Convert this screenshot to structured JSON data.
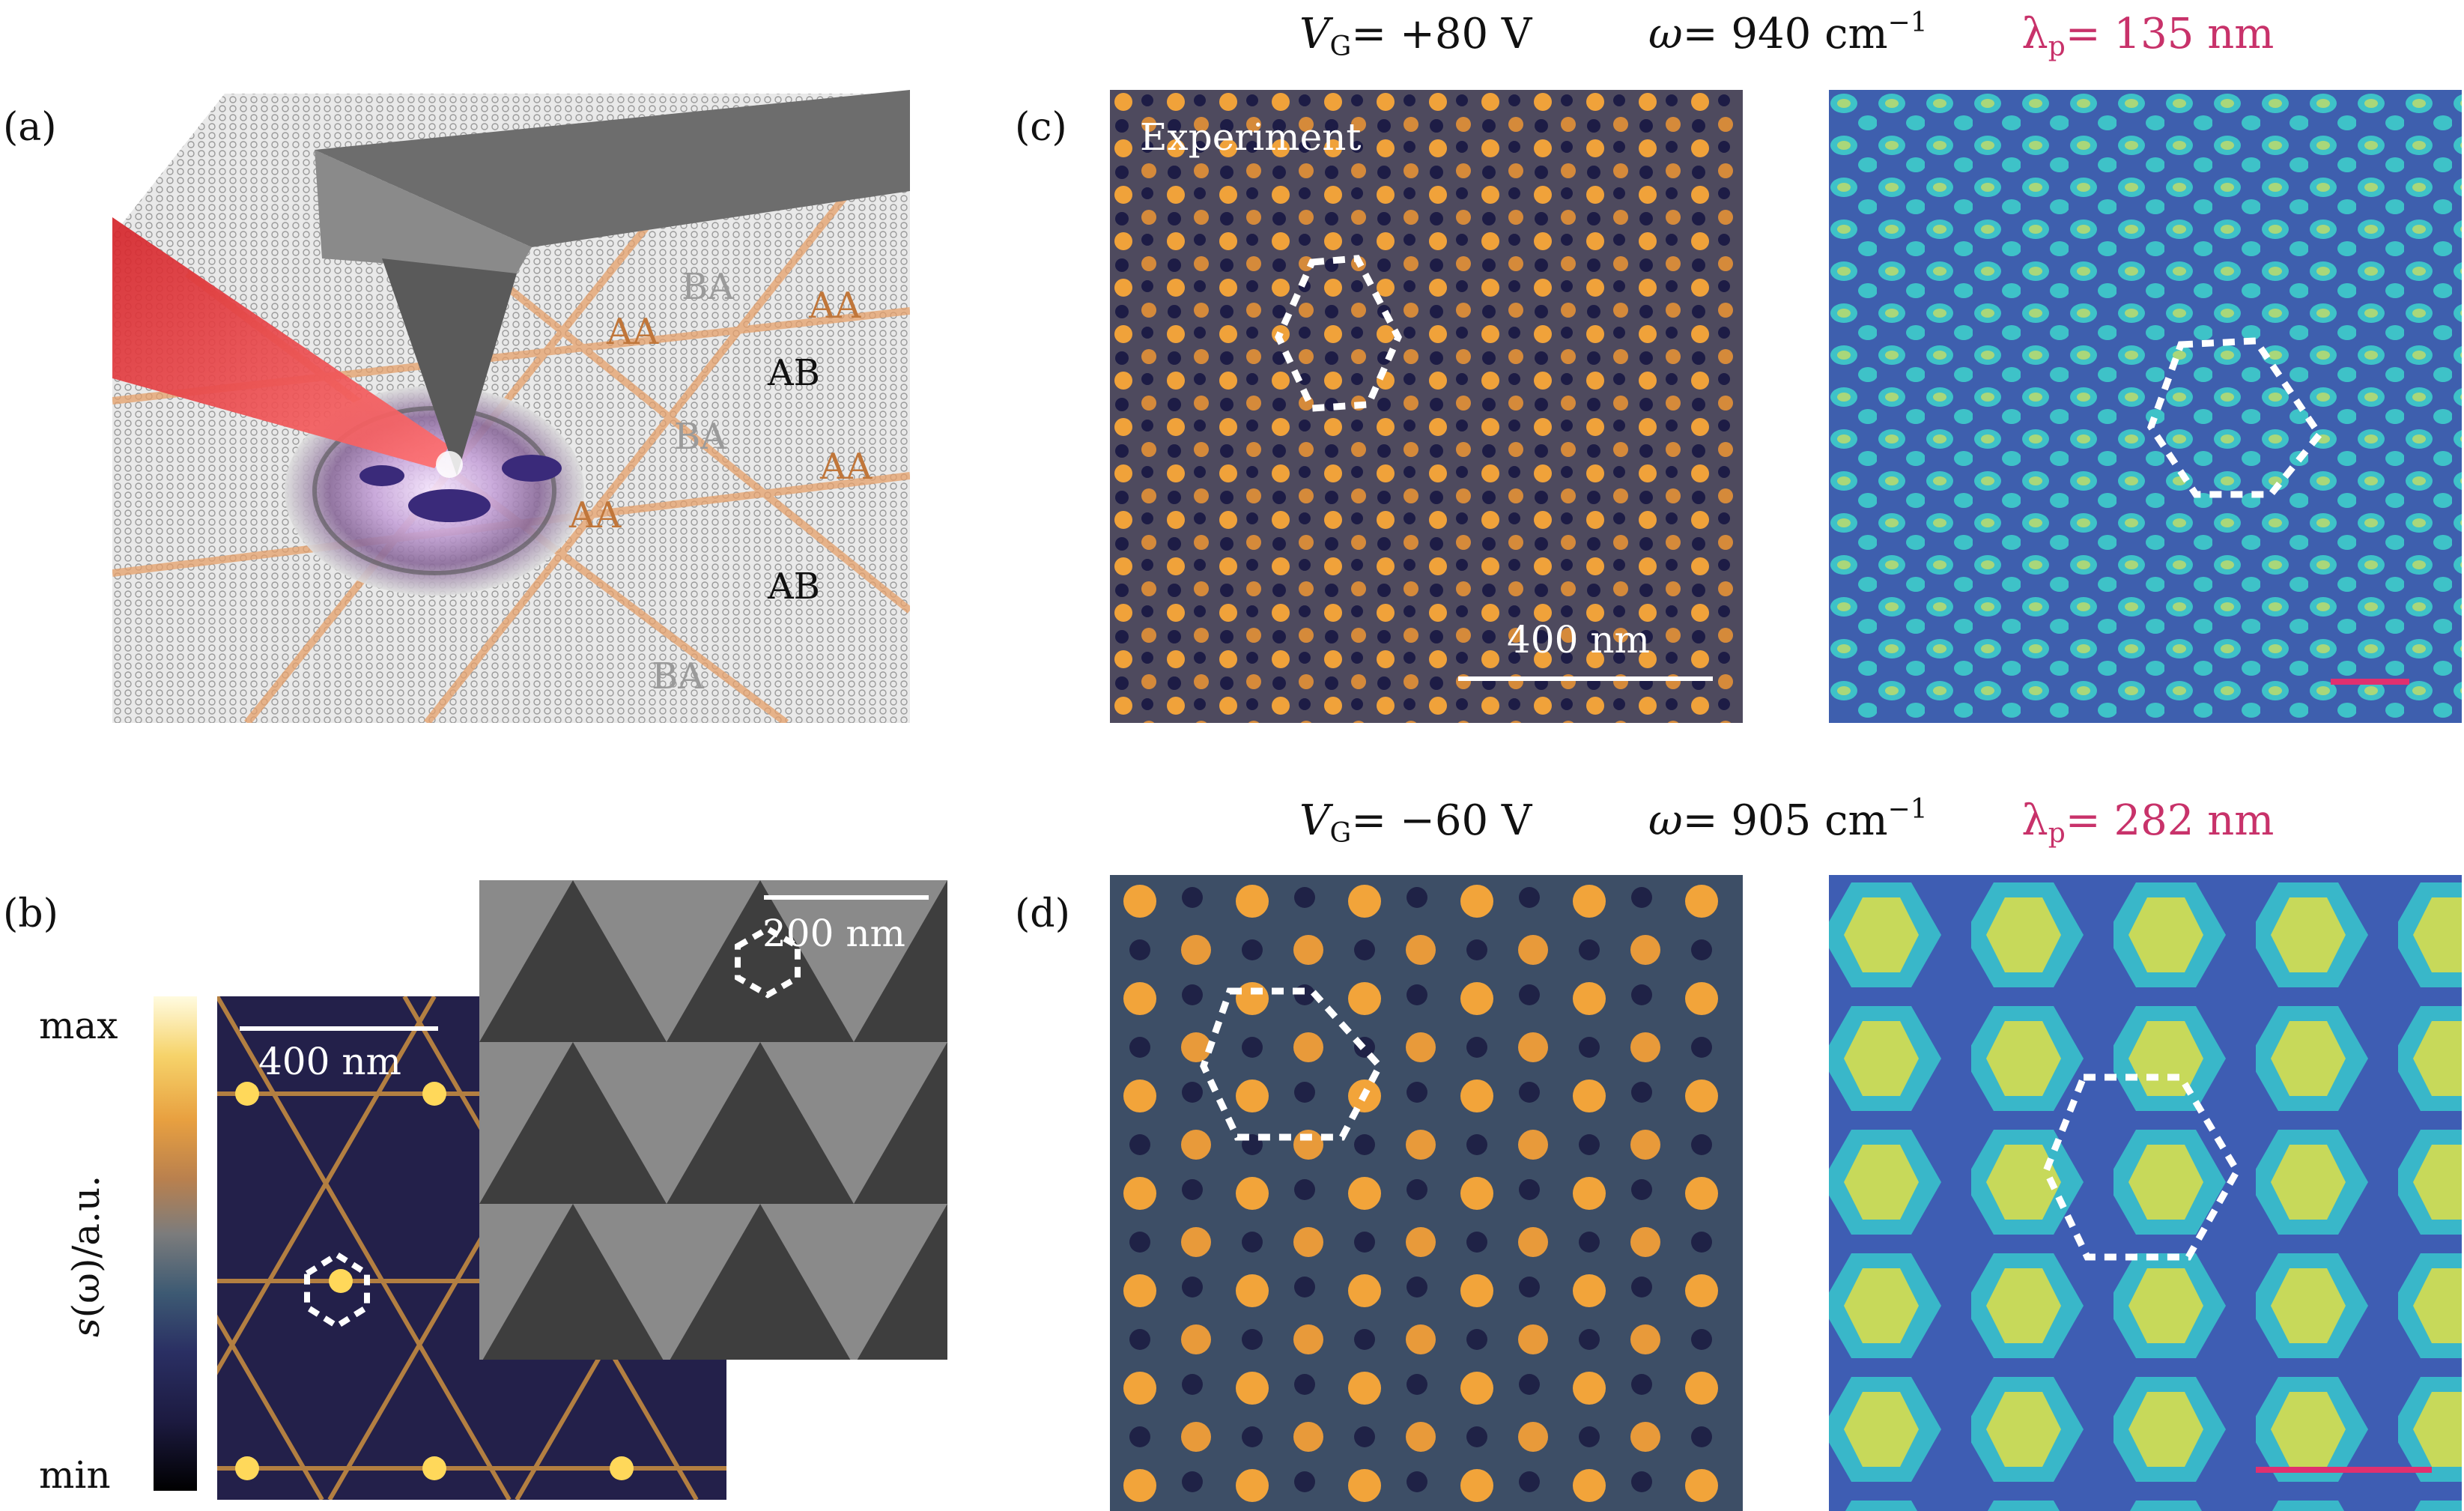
{
  "panel_labels": {
    "a": "(a)",
    "b": "(b)",
    "c": "(c)",
    "d": "(d)"
  },
  "header_top": {
    "vg_sym": "V",
    "vg_sub": "G",
    "vg_val": "= +80  V",
    "w_sym": "ω",
    "w_val": "= 940  cm",
    "w_exp": "−1",
    "lp_sym": "λ",
    "lp_sub": "p",
    "lp_val": "= 135  nm"
  },
  "header_bottom": {
    "vg_sym": "V",
    "vg_sub": "G",
    "vg_val": "= −60  V",
    "w_sym": "ω",
    "w_val": "= 905  cm",
    "w_exp": "−1",
    "lp_sym": "λ",
    "lp_sub": "p",
    "lp_val": "= 282  nm"
  },
  "panel_a": {
    "stack_labels": [
      "BA",
      "AA",
      "AA",
      "AB",
      "BA",
      "AA",
      "AA",
      "AB",
      "BA"
    ]
  },
  "panel_b": {
    "colorbar_max": "max",
    "colorbar_min": "min",
    "ylabel_s": "s",
    "ylabel_rest": "(ω)/a.u.",
    "scale_left": "400 nm",
    "scale_right": "200 nm"
  },
  "panel_c": {
    "experiment_label": "Experiment",
    "scale": "400 nm"
  },
  "colors": {
    "pink": "#c8326a",
    "hexagon": "#ffffff"
  }
}
